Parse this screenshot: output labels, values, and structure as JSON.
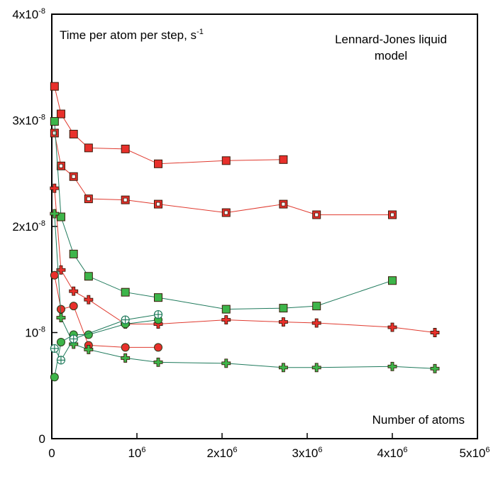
{
  "chart_data": {
    "type": "scatter",
    "annotations": {
      "ylabel": "Time per atom per step, s",
      "ylabel_sup": "-1",
      "model_line1": "Lennard-Jones liquid",
      "model_line2": "model",
      "xlabel": "Number of atoms"
    },
    "xlim": [
      0,
      5000000
    ],
    "ylim": [
      0,
      4e-08
    ],
    "x_ticks": [
      {
        "value": 0,
        "base": "0",
        "sup": ""
      },
      {
        "value": 1000000,
        "base": "10",
        "sup": "6"
      },
      {
        "value": 2000000,
        "base": "2x10",
        "sup": "6"
      },
      {
        "value": 3000000,
        "base": "3x10",
        "sup": "6"
      },
      {
        "value": 4000000,
        "base": "4x10",
        "sup": "6"
      },
      {
        "value": 5000000,
        "base": "5x10",
        "sup": "6"
      }
    ],
    "y_ticks": [
      {
        "value": 0,
        "base": "0",
        "sup": ""
      },
      {
        "value": 1e-08,
        "base": "10",
        "sup": "-8"
      },
      {
        "value": 2e-08,
        "base": "2x10",
        "sup": "-8"
      },
      {
        "value": 3e-08,
        "base": "3x10",
        "sup": "-8"
      },
      {
        "value": 4e-08,
        "base": "4x10",
        "sup": "-8"
      }
    ],
    "grid": false,
    "legend": "none",
    "colors": {
      "red": "#e8302b",
      "green": "#3db54a",
      "red_line": "#e03a2f",
      "green_line": "#1f7a5c"
    },
    "series": [
      {
        "marker": "square-filled",
        "color": "red",
        "x": [
          32000,
          108000,
          256000,
          432000,
          864000,
          1250000,
          2048000,
          2720000
        ],
        "y": [
          3.32e-08,
          3.06e-08,
          2.87e-08,
          2.74e-08,
          2.73e-08,
          2.59e-08,
          2.62e-08,
          2.63e-08
        ]
      },
      {
        "marker": "square-open",
        "color": "red",
        "x": [
          32000,
          108000,
          256000,
          432000,
          864000,
          1250000,
          2048000,
          2720000,
          3110000,
          4000000
        ],
        "y": [
          2.88e-08,
          2.57e-08,
          2.47e-08,
          2.26e-08,
          2.25e-08,
          2.21e-08,
          2.13e-08,
          2.21e-08,
          2.11e-08,
          2.11e-08
        ]
      },
      {
        "marker": "cross",
        "color": "red",
        "x": [
          32000,
          108000,
          256000,
          432000,
          864000,
          1250000,
          2048000,
          2720000,
          3110000,
          4000000,
          4500000
        ],
        "y": [
          2.36e-08,
          1.59e-08,
          1.39e-08,
          1.31e-08,
          1.08e-08,
          1.08e-08,
          1.12e-08,
          1.1e-08,
          1.09e-08,
          1.05e-08,
          1e-08
        ]
      },
      {
        "marker": "circle-filled",
        "color": "red",
        "x": [
          32000,
          108000,
          256000,
          432000,
          864000,
          1250000
        ],
        "y": [
          1.54e-08,
          1.22e-08,
          1.25e-08,
          8.8e-09,
          8.6e-09,
          8.6e-09
        ]
      },
      {
        "marker": "square-filled",
        "color": "green",
        "x": [
          32000,
          108000,
          256000,
          432000,
          864000,
          1250000,
          2048000,
          2720000,
          3110000,
          4000000
        ],
        "y": [
          2.99e-08,
          2.09e-08,
          1.74e-08,
          1.53e-08,
          1.38e-08,
          1.33e-08,
          1.22e-08,
          1.23e-08,
          1.25e-08,
          1.49e-08
        ]
      },
      {
        "marker": "cross",
        "color": "green",
        "x": [
          32000,
          108000,
          256000,
          432000,
          864000,
          1250000,
          2048000,
          2720000,
          3110000,
          4000000,
          4500000
        ],
        "y": [
          2.12e-08,
          1.14e-08,
          8.9e-09,
          8.4e-09,
          7.6e-09,
          7.2e-09,
          7.1e-09,
          6.7e-09,
          6.7e-09,
          6.8e-09,
          6.6e-09
        ]
      },
      {
        "marker": "circle-filled",
        "color": "green",
        "x": [
          32000,
          108000,
          256000,
          432000,
          864000,
          1250000
        ],
        "y": [
          5.8e-09,
          9.1e-09,
          9.8e-09,
          9.8e-09,
          1.08e-08,
          1.12e-08
        ]
      },
      {
        "marker": "circle-cross",
        "color": "green",
        "x": [
          32000,
          108000,
          256000,
          864000,
          1250000
        ],
        "y": [
          8.5e-09,
          7.4e-09,
          9.4e-09,
          1.12e-08,
          1.17e-08
        ]
      }
    ]
  }
}
